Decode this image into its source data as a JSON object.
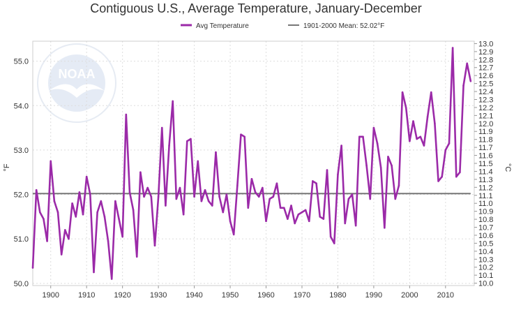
{
  "chart_data": {
    "type": "line",
    "title": "Contiguous U.S., Average Temperature, January-December",
    "ylabel_left": "°F",
    "ylabel_right": "°C",
    "legend_position": "top-center",
    "grid": true,
    "xlim": [
      1895,
      2018
    ],
    "ylim": [
      49.95,
      55.45
    ],
    "ylim_right_celsius": [
      9.97,
      13.03
    ],
    "x_ticks": [
      "1900",
      "1910",
      "1920",
      "1930",
      "1940",
      "1950",
      "1960",
      "1970",
      "1980",
      "1990",
      "2000",
      "2010"
    ],
    "y_ticks_left": [
      "50.0",
      "51.0",
      "52.0",
      "53.0",
      "54.0",
      "55.0"
    ],
    "y_ticks_right": [
      "10.0",
      "10.1",
      "10.2",
      "10.3",
      "10.4",
      "10.5",
      "10.6",
      "10.7",
      "10.8",
      "10.9",
      "11.0",
      "11.1",
      "11.2",
      "11.3",
      "11.4",
      "11.5",
      "11.6",
      "11.7",
      "11.8",
      "11.9",
      "12.0",
      "12.1",
      "12.2",
      "12.3",
      "12.4",
      "12.5",
      "12.6",
      "12.7",
      "12.8",
      "12.9",
      "13.0"
    ],
    "series": [
      {
        "name": "Avg Temperature",
        "color": "#9b2aa8",
        "x": [
          1895,
          1896,
          1897,
          1898,
          1899,
          1900,
          1901,
          1902,
          1903,
          1904,
          1905,
          1906,
          1907,
          1908,
          1909,
          1910,
          1911,
          1912,
          1913,
          1914,
          1915,
          1916,
          1917,
          1918,
          1919,
          1920,
          1921,
          1922,
          1923,
          1924,
          1925,
          1926,
          1927,
          1928,
          1929,
          1930,
          1931,
          1932,
          1933,
          1934,
          1935,
          1936,
          1937,
          1938,
          1939,
          1940,
          1941,
          1942,
          1943,
          1944,
          1945,
          1946,
          1947,
          1948,
          1949,
          1950,
          1951,
          1952,
          1953,
          1954,
          1955,
          1956,
          1957,
          1958,
          1959,
          1960,
          1961,
          1962,
          1963,
          1964,
          1965,
          1966,
          1967,
          1968,
          1969,
          1970,
          1971,
          1972,
          1973,
          1974,
          1975,
          1976,
          1977,
          1978,
          1979,
          1980,
          1981,
          1982,
          1983,
          1984,
          1985,
          1986,
          1987,
          1988,
          1989,
          1990,
          1991,
          1992,
          1993,
          1994,
          1995,
          1996,
          1997,
          1998,
          1999,
          2000,
          2001,
          2002,
          2003,
          2004,
          2005,
          2006,
          2007,
          2008,
          2009,
          2010,
          2011,
          2012,
          2013,
          2014,
          2015,
          2016,
          2017
        ],
        "values": [
          50.35,
          52.1,
          51.6,
          51.45,
          50.95,
          52.75,
          51.85,
          51.6,
          50.65,
          51.2,
          51.0,
          51.8,
          51.5,
          52.05,
          51.55,
          52.4,
          52.0,
          50.25,
          51.6,
          51.85,
          51.5,
          50.95,
          50.1,
          51.85,
          51.45,
          51.05,
          53.8,
          52.05,
          51.65,
          50.6,
          52.5,
          51.95,
          52.15,
          51.95,
          50.85,
          51.95,
          53.5,
          51.75,
          53.1,
          54.1,
          51.9,
          52.15,
          51.55,
          53.2,
          53.25,
          51.95,
          52.75,
          51.85,
          52.1,
          51.85,
          51.75,
          52.95,
          51.95,
          51.6,
          52.0,
          51.4,
          51.1,
          52.2,
          53.35,
          53.3,
          51.7,
          52.35,
          52.05,
          51.95,
          52.15,
          51.4,
          51.9,
          51.95,
          52.25,
          51.7,
          51.7,
          51.45,
          51.75,
          51.35,
          51.55,
          51.6,
          51.65,
          51.4,
          52.3,
          52.25,
          51.5,
          51.45,
          52.55,
          51.05,
          50.9,
          52.45,
          53.1,
          51.35,
          51.9,
          52.0,
          51.3,
          53.3,
          53.3,
          52.65,
          51.9,
          53.5,
          53.15,
          52.6,
          51.25,
          52.85,
          52.65,
          51.9,
          52.2,
          54.3,
          53.95,
          53.2,
          53.65,
          53.25,
          53.3,
          53.1,
          53.75,
          54.3,
          53.6,
          52.3,
          52.4,
          53.0,
          53.15,
          55.3,
          52.4,
          52.5,
          54.45,
          54.95,
          54.55
        ]
      },
      {
        "name": "1901-2000 Mean: 52.02°F",
        "color": "#777777",
        "x": [
          1895,
          2017
        ],
        "values": [
          52.02,
          52.02
        ]
      }
    ]
  },
  "watermark": {
    "text": "NOAA"
  }
}
